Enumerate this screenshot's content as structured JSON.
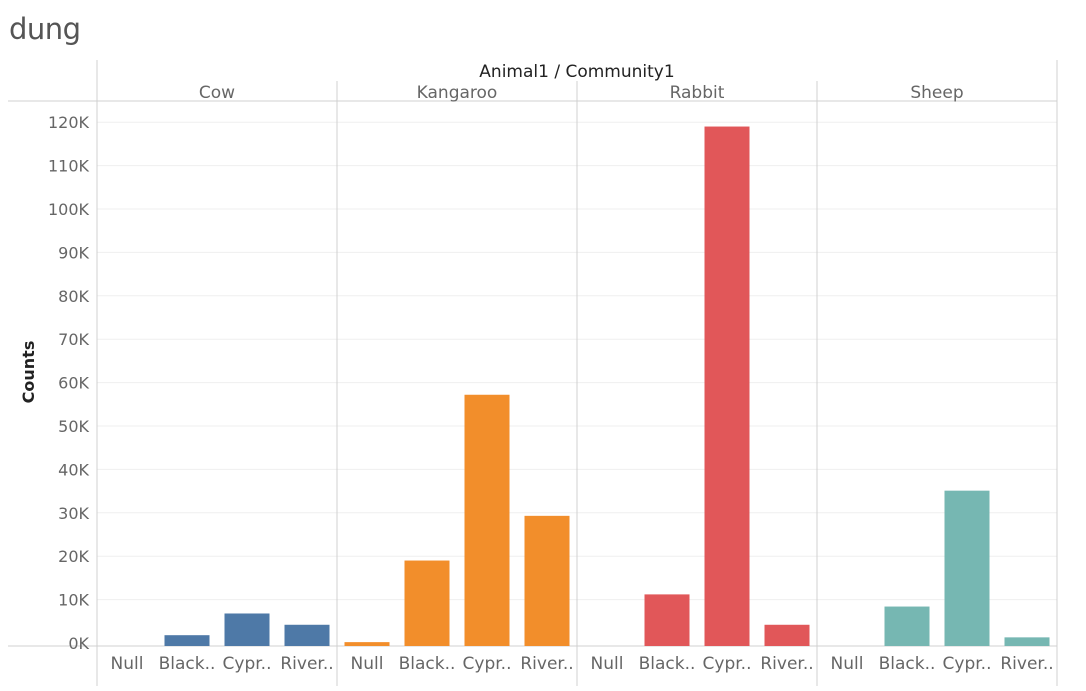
{
  "page_title": "dung",
  "chart_data": {
    "type": "bar",
    "title": "dung",
    "header_label": "Animal1 / Community1",
    "ylabel": "Counts",
    "ylim": [
      -3000,
      122000
    ],
    "yticks": [
      0,
      10000,
      20000,
      30000,
      40000,
      50000,
      60000,
      70000,
      80000,
      90000,
      100000,
      110000,
      120000
    ],
    "ytick_labels": [
      "0K",
      "10K",
      "20K",
      "30K",
      "40K",
      "50K",
      "60K",
      "70K",
      "80K",
      "90K",
      "100K",
      "110K",
      "120K"
    ],
    "grid": true,
    "panels": [
      {
        "name": "Cow",
        "color": "#4e79a7",
        "categories": [
          "Null",
          "Black..",
          "Cypr..",
          "River.."
        ],
        "values": [
          0,
          1800,
          6800,
          4200
        ]
      },
      {
        "name": "Kangaroo",
        "color": "#f28e2b",
        "categories": [
          "Null",
          "Black..",
          "Cypr..",
          "River.."
        ],
        "values": [
          200,
          19000,
          57200,
          29300
        ]
      },
      {
        "name": "Rabbit",
        "color": "#e15759",
        "categories": [
          "Null",
          "Black..",
          "Cypr..",
          "River.."
        ],
        "values": [
          0,
          11200,
          119000,
          4200
        ]
      },
      {
        "name": "Sheep",
        "color": "#76b7b2",
        "categories": [
          "Null",
          "Black..",
          "Cypr..",
          "River.."
        ],
        "values": [
          0,
          8400,
          35100,
          1300
        ]
      }
    ]
  }
}
